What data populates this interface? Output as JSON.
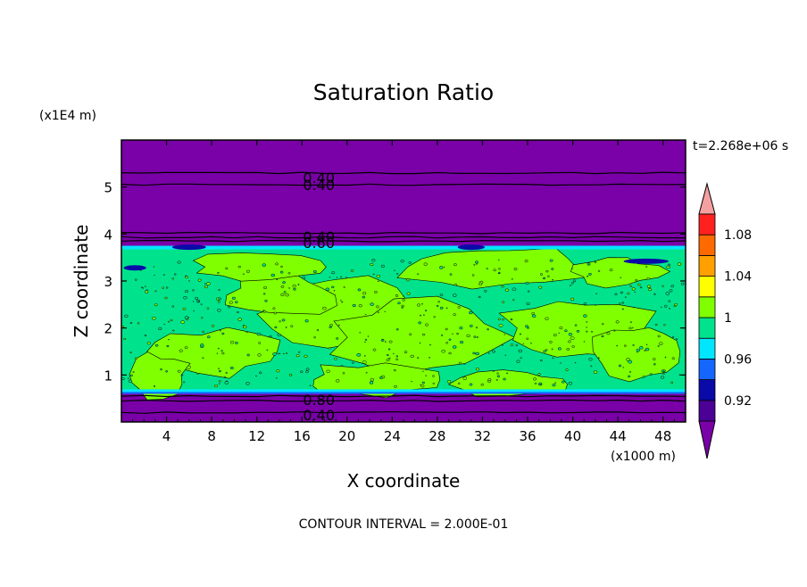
{
  "chart_data": {
    "type": "contour",
    "title": "Saturation Ratio",
    "xlabel": "X coordinate",
    "ylabel": "Z coordinate",
    "x_unit": "(x1000 m)",
    "y_unit": "(x1E4 m)",
    "time_label": "t=2.268e+06 s",
    "footer": "CONTOUR INTERVAL = 2.000E-01",
    "xlim": [
      0,
      50
    ],
    "ylim": [
      0,
      6
    ],
    "x_ticks": [
      "4",
      "8",
      "12",
      "16",
      "20",
      "24",
      "28",
      "32",
      "36",
      "40",
      "44",
      "48"
    ],
    "x_tick_values": [
      4,
      8,
      12,
      16,
      20,
      24,
      28,
      32,
      36,
      40,
      44,
      48
    ],
    "y_ticks": [
      "1",
      "2",
      "3",
      "4",
      "5"
    ],
    "y_tick_values": [
      1,
      2,
      3,
      4,
      5
    ],
    "regions": [
      {
        "name": "stratosphere-low-ratio",
        "z_range": [
          3.75,
          6.0
        ],
        "color": "#7a00a8"
      },
      {
        "name": "cloud-layer",
        "z_range": [
          0.6,
          3.75
        ],
        "dominant_color": "#00e38c",
        "patch_color": "#7fff00"
      },
      {
        "name": "boundary-layer-low-ratio",
        "z_range": [
          0.0,
          0.6
        ],
        "color": "#7a00a8"
      }
    ],
    "contour_labels": [
      {
        "text": "0.40",
        "x": 17.5,
        "z": 5.2
      },
      {
        "text": "0.40",
        "x": 17.5,
        "z": 5.05
      },
      {
        "text": "0.40",
        "x": 17.5,
        "z": 3.95
      },
      {
        "text": "0.60",
        "x": 17.5,
        "z": 3.82
      },
      {
        "text": "0.80",
        "x": 17.5,
        "z": 0.47
      },
      {
        "text": "0.40",
        "x": 17.5,
        "z": 0.15
      }
    ],
    "colorbar": {
      "labels": [
        "1.08",
        "1.04",
        "1",
        "0.96",
        "0.92"
      ],
      "label_values": [
        1.08,
        1.04,
        1.0,
        0.96,
        0.92
      ],
      "levels": [
        0.9,
        0.92,
        0.94,
        0.96,
        0.98,
        1.0,
        1.02,
        1.04,
        1.06,
        1.08,
        1.1
      ],
      "colors": [
        "#4b0096",
        "#0a0aa8",
        "#1466ff",
        "#00e6ff",
        "#00e38c",
        "#7fff00",
        "#ffff00",
        "#ffa000",
        "#ff6a00",
        "#ff2020"
      ],
      "over_color": "#f5a0a0",
      "under_color": "#7a00a8"
    }
  }
}
